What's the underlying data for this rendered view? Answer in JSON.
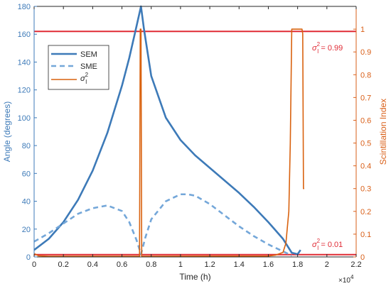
{
  "chart_data": {
    "type": "line",
    "xlabel": "Time (h)",
    "x_exponent_label": "×10",
    "x_exponent_power": "4",
    "ylabel_left": "Angle (degrees)",
    "ylabel_right": "Scintillation Index",
    "xlim": [
      0,
      22000
    ],
    "ylim_left": [
      0,
      180
    ],
    "ylim_right": [
      0,
      1.1
    ],
    "x_ticks": [
      0,
      2000,
      4000,
      6000,
      8000,
      10000,
      12000,
      14000,
      16000,
      18000,
      20000,
      22000
    ],
    "x_tick_labels": [
      "0",
      "0.2",
      "0.4",
      "0.6",
      "0.8",
      "1",
      "1.2",
      "1.4",
      "1.6",
      "1.8",
      "2",
      "2.2"
    ],
    "y_left_ticks": [
      0,
      20,
      40,
      60,
      80,
      100,
      120,
      140,
      160,
      180
    ],
    "y_left_tick_labels": [
      "0",
      "20",
      "40",
      "60",
      "80",
      "100",
      "120",
      "140",
      "160",
      "180"
    ],
    "y_right_ticks": [
      0,
      0.1,
      0.2,
      0.3,
      0.4,
      0.5,
      0.6,
      0.7,
      0.8,
      0.9,
      1
    ],
    "y_right_tick_labels": [
      "0",
      "0.1",
      "0.2",
      "0.3",
      "0.4",
      "0.5",
      "0.6",
      "0.7",
      "0.8",
      "0.9",
      "1"
    ],
    "grid": false,
    "legend_position": "top-left",
    "colors": {
      "left_axis": "#3d7ab8",
      "right_axis": "#d95f18",
      "sem": "#3d7ab8",
      "sme": "#74a7d9",
      "scint": "#d9620f",
      "threshold": "#e02b35"
    },
    "series": [
      {
        "name": "SEM",
        "axis": "left",
        "style": "solid",
        "x": [
          0,
          1000,
          2000,
          3000,
          4000,
          5000,
          6000,
          6500,
          7000,
          7300,
          7500,
          8000,
          9000,
          10000,
          11000,
          12000,
          13000,
          14000,
          15000,
          16000,
          17000,
          17600,
          18000,
          18200
        ],
        "y": [
          5,
          13,
          25,
          41,
          62,
          89,
          123,
          143,
          166,
          180,
          164,
          130,
          100,
          84,
          73,
          64,
          55,
          46,
          36,
          25,
          13,
          3,
          2,
          5
        ]
      },
      {
        "name": "SME",
        "axis": "left",
        "style": "dashed",
        "x": [
          0,
          1000,
          2000,
          3000,
          4000,
          5000,
          6000,
          6500,
          7000,
          7300,
          7600,
          8000,
          9000,
          10000,
          10500,
          11000,
          12000,
          13000,
          14000,
          15000,
          16000,
          17000,
          17600
        ],
        "y": [
          11,
          17,
          24,
          31,
          35,
          37,
          33,
          25,
          12,
          2,
          14,
          27,
          40,
          45,
          45,
          44,
          38,
          30,
          22,
          15,
          9,
          4,
          1
        ]
      },
      {
        "name_base": "σ",
        "name_sup": "2",
        "name_sub": "I",
        "axis": "right",
        "style": "solid",
        "x": [
          0,
          300,
          1000,
          7200,
          7250,
          7300,
          7350,
          7400,
          7500,
          16000,
          16500,
          17000,
          17200,
          17400,
          17500,
          17600,
          17700,
          18300,
          18350,
          18400,
          18450
        ],
        "y": [
          0.015,
          0.005,
          0.003,
          0.003,
          1.0,
          1.0,
          0.003,
          0.003,
          0.003,
          0.004,
          0.008,
          0.02,
          0.06,
          0.2,
          0.5,
          1.0,
          1.0,
          1.0,
          0.98,
          0.3,
          0.3
        ]
      }
    ],
    "thresholds": [
      {
        "axis": "right",
        "value": 0.99,
        "label_base": "σ",
        "label_sup": "2",
        "label_sub": "I",
        "label_value": " = 0.99"
      },
      {
        "axis": "right",
        "value": 0.01,
        "label_base": "σ",
        "label_sup": "2",
        "label_sub": "I",
        "label_value": " = 0.01"
      }
    ]
  }
}
